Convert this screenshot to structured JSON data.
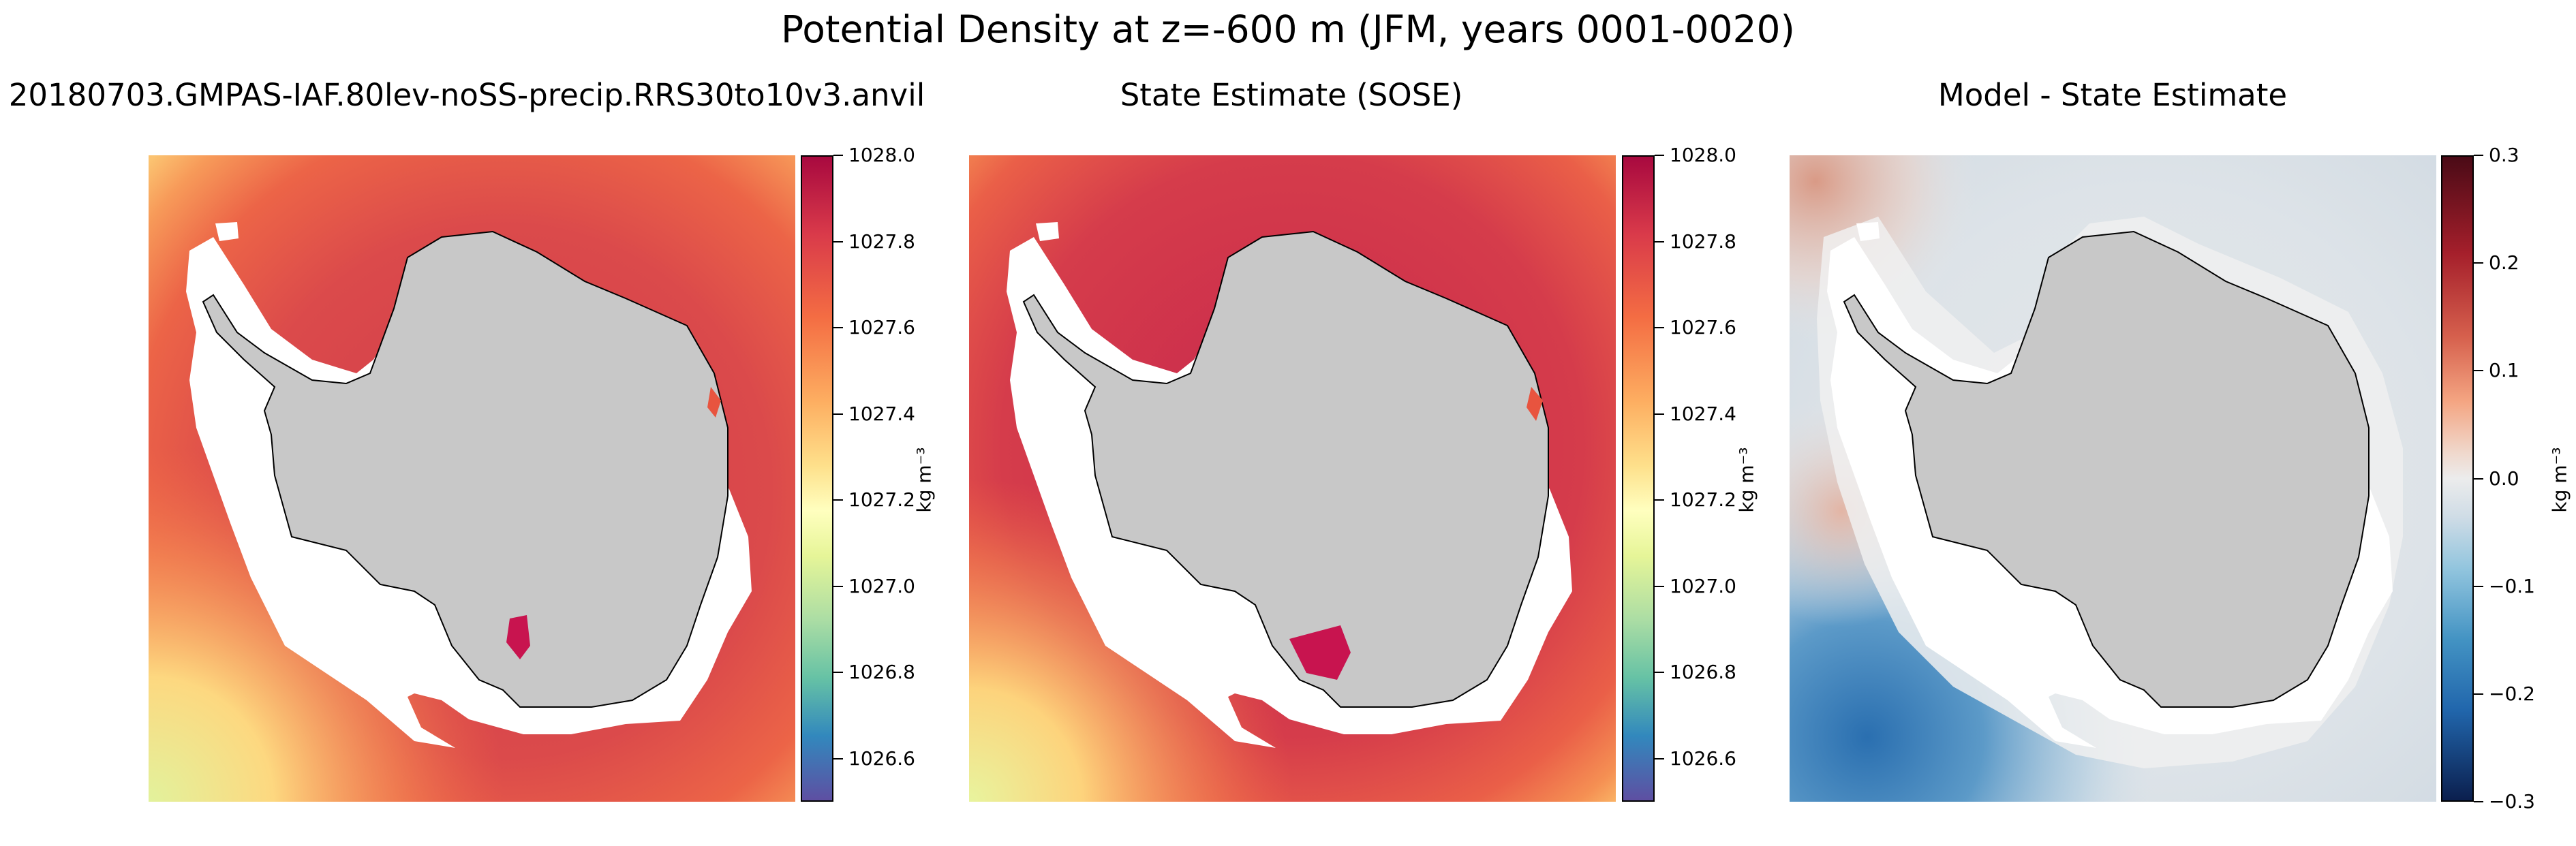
{
  "figure": {
    "suptitle": "Potential Density at z=-600 m (JFM, years 0001-0020)"
  },
  "panels": [
    {
      "title": "20180703.GMPAS-IAF.80lev-noSS-precip.RRS30to10v3.anvil",
      "colormap": "Spectral_r",
      "colorbar": {
        "label": "kg m⁻³",
        "range": [
          1026.5,
          1028.0
        ],
        "ticks": [
          "1028.0",
          "1027.8",
          "1027.6",
          "1027.4",
          "1027.2",
          "1027.0",
          "1026.8",
          "1026.6"
        ],
        "colors": [
          "#a8093f",
          "#d93a4a",
          "#f46d43",
          "#fdae61",
          "#fee08b",
          "#ffffbf",
          "#e6f598",
          "#abdda4",
          "#66c2a5",
          "#3288bd",
          "#5e4fa2"
        ]
      }
    },
    {
      "title": "State Estimate (SOSE)",
      "colormap": "Spectral_r",
      "colorbar": {
        "label": "kg m⁻³",
        "range": [
          1026.5,
          1028.0
        ],
        "ticks": [
          "1028.0",
          "1027.8",
          "1027.6",
          "1027.4",
          "1027.2",
          "1027.0",
          "1026.8",
          "1026.6"
        ],
        "colors": [
          "#a8093f",
          "#d93a4a",
          "#f46d43",
          "#fdae61",
          "#fee08b",
          "#ffffbf",
          "#e6f598",
          "#abdda4",
          "#66c2a5",
          "#3288bd",
          "#5e4fa2"
        ]
      }
    },
    {
      "title": "Model - State Estimate",
      "colormap": "RdBu_r",
      "colorbar": {
        "label": "kg m⁻³",
        "range": [
          -0.3,
          0.3
        ],
        "ticks": [
          "0.3",
          "0.2",
          "0.1",
          "0.0",
          "−0.1",
          "−0.2",
          "−0.3"
        ],
        "colors": [
          "#4a0a16",
          "#a51f2b",
          "#d6604d",
          "#f4a582",
          "#f0d8cc",
          "#ececec",
          "#cfdce6",
          "#92c5de",
          "#4393c3",
          "#2166ac",
          "#0b1f4e"
        ]
      }
    }
  ],
  "colors": {
    "land": "#c8c8c8",
    "no_data": "#ffffff",
    "coastline": "#000000"
  }
}
